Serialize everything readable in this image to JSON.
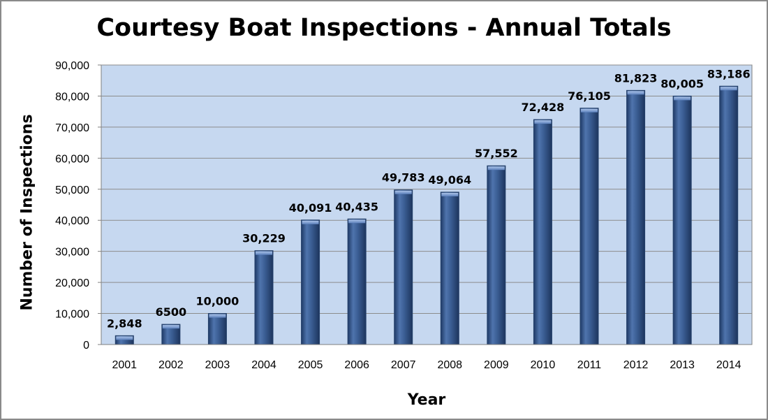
{
  "chart_data": {
    "type": "bar",
    "title": "Courtesy Boat Inspections - Annual Totals",
    "xlabel": "Year",
    "ylabel": "Number of Inspections",
    "ylim": [
      0,
      90000
    ],
    "yticks": [
      0,
      10000,
      20000,
      30000,
      40000,
      50000,
      60000,
      70000,
      80000,
      90000
    ],
    "ytick_labels": [
      "0",
      "10,000",
      "20,000",
      "30,000",
      "40,000",
      "50,000",
      "60,000",
      "70,000",
      "80,000",
      "90,000"
    ],
    "grid": true,
    "categories": [
      "2001",
      "2002",
      "2003",
      "2004",
      "2005",
      "2006",
      "2007",
      "2008",
      "2009",
      "2010",
      "2011",
      "2012",
      "2013",
      "2014"
    ],
    "values": [
      2848,
      6500,
      10000,
      30229,
      40091,
      40435,
      49783,
      49064,
      57552,
      72428,
      76105,
      81823,
      80005,
      83186
    ],
    "data_labels": [
      "2,848",
      "6500",
      "10,000",
      "30,229",
      "40,091",
      "40,435",
      "49,783",
      "49,064",
      "57,552",
      "72,428",
      "76,105",
      "81,823",
      "80,005",
      "83,186"
    ],
    "colors": {
      "plot_background": "#c6d8f0",
      "bar": "#3b5e94",
      "bar_highlight": "#7f9fd0",
      "gridline": "#8c8c8c"
    }
  }
}
